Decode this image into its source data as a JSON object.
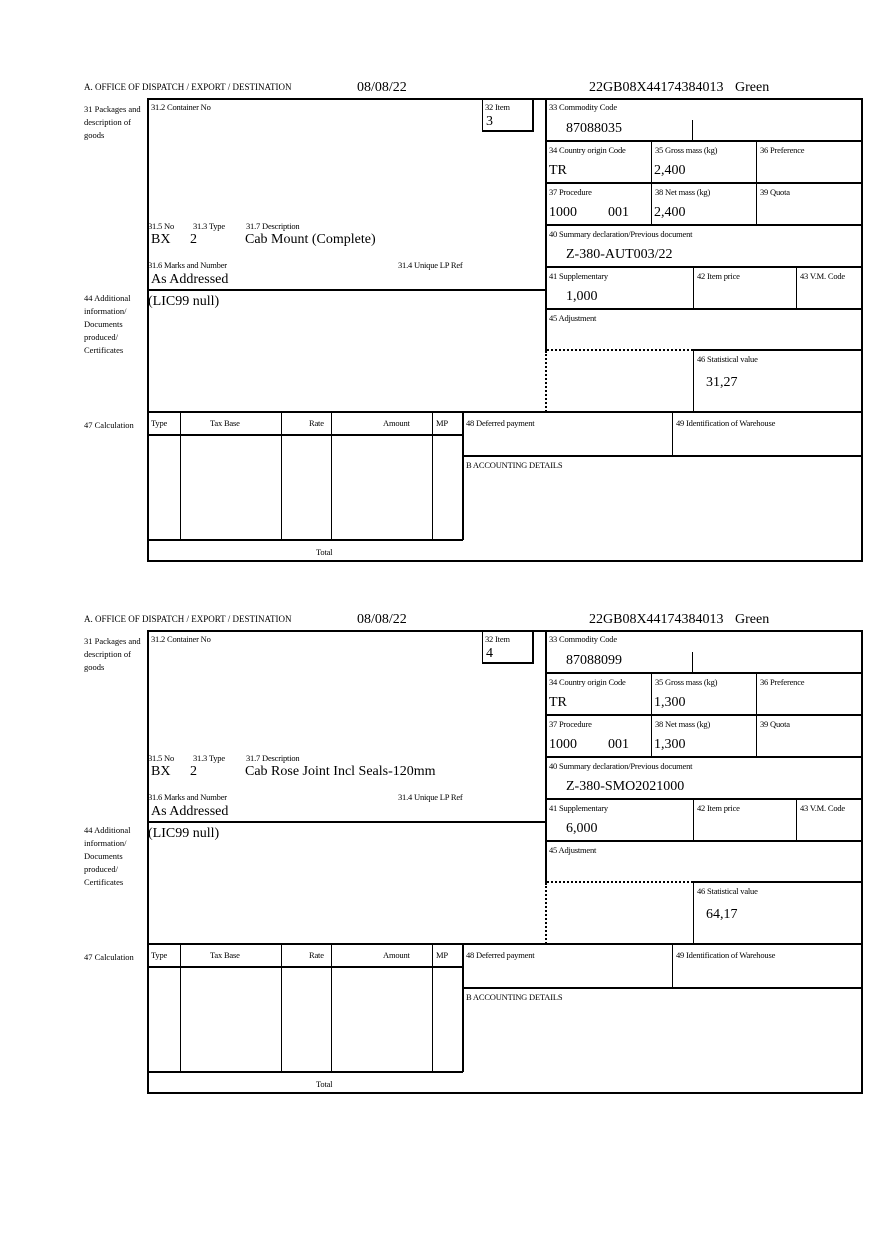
{
  "labels": {
    "office": "A. OFFICE OF DISPATCH / EXPORT / DESTINATION",
    "l31": "31 Packages and description of goods",
    "l31_2": "31.2 Container No",
    "l32": "32 Item",
    "l33": "33 Commodity Code",
    "l34": "34 Country origin Code",
    "l35": "35 Gross mass (kg)",
    "l36": "36 Preference",
    "l37": "37 Procedure",
    "l38": "38 Net mass (kg)",
    "l39": "39 Quota",
    "l40": "40 Summary declaration/Previous document",
    "l41": "41 Supplementary",
    "l42": "42 Item price",
    "l43": "43 V.M. Code",
    "l44": "44 Additional information/ Documents produced/ Certificates",
    "l45": "45 Adjustment",
    "l46": "46 Statistical value",
    "l31_5": "31.5 No",
    "l31_3": "31.3 Type",
    "l31_7": "31.7 Description",
    "l31_6": "31.6 Marks and Number",
    "l31_4": "31.4 Unique LP Ref",
    "l47": "47 Calculation",
    "col_type": "Type",
    "col_taxbase": "Tax Base",
    "col_rate": "Rate",
    "col_amount": "Amount",
    "col_mp": "MP",
    "total": "Total",
    "l48": "48 Deferred payment",
    "l49": "49 Identification of Warehouse",
    "accounting": "B ACCOUNTING DETAILS"
  },
  "blocks": [
    {
      "date": "08/08/22",
      "reference": "22GB08X44174384013",
      "route": "Green",
      "item": "3",
      "commodity_code": "87088035",
      "country_origin": "TR",
      "gross_mass": "2,400",
      "procedure": "1000",
      "procedure_extra": "001",
      "net_mass": "2,400",
      "summary_doc": "Z-380-AUT003/22",
      "supplementary": "1,000",
      "statistical_value": "31,27",
      "pkg_no": "BX",
      "pkg_type": "2",
      "description": "Cab Mount (Complete)",
      "marks": "As Addressed",
      "additional_info": "(LIC99 null)"
    },
    {
      "date": "08/08/22",
      "reference": "22GB08X44174384013",
      "route": "Green",
      "item": "4",
      "commodity_code": "87088099",
      "country_origin": "TR",
      "gross_mass": "1,300",
      "procedure": "1000",
      "procedure_extra": "001",
      "net_mass": "1,300",
      "summary_doc": "Z-380-SMO2021000",
      "supplementary": "6,000",
      "statistical_value": "64,17",
      "pkg_no": "BX",
      "pkg_type": "2",
      "description": "Cab Rose Joint Incl Seals-120mm",
      "marks": "As Addressed",
      "additional_info": "(LIC99 null)"
    }
  ]
}
